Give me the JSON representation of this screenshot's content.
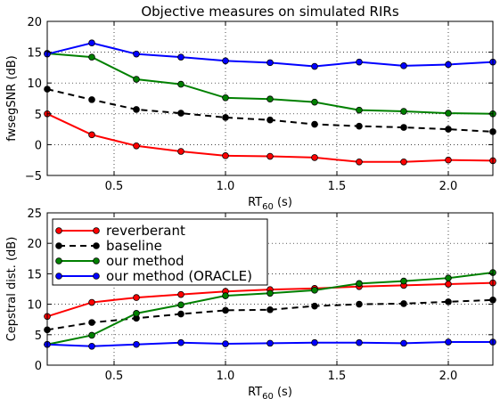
{
  "chart_data": [
    {
      "type": "line",
      "title": "Objective measures on simulated RIRs",
      "xlabel_main": "RT",
      "xlabel_sub": "60",
      "xlabel_unit": " (s)",
      "ylabel": "fwsegSNR (dB)",
      "xlim": [
        0.2,
        2.2
      ],
      "ylim": [
        -5,
        20
      ],
      "xticks": [
        0.5,
        1.0,
        1.5,
        2.0
      ],
      "xtick_labels": [
        "0.5",
        "1.0",
        "1.5",
        "2.0"
      ],
      "yticks": [
        -5,
        0,
        5,
        10,
        15,
        20
      ],
      "ytick_labels": [
        "−5",
        "0",
        "5",
        "10",
        "15",
        "20"
      ],
      "grid": true,
      "x": [
        0.2,
        0.4,
        0.6,
        0.8,
        1.0,
        1.2,
        1.4,
        1.6,
        1.8,
        2.0,
        2.2
      ],
      "series": [
        {
          "name": "reverberant",
          "color": "#ff0000",
          "dashed": false,
          "values": [
            5.0,
            1.6,
            -0.2,
            -1.1,
            -1.8,
            -1.9,
            -2.1,
            -2.8,
            -2.8,
            -2.5,
            -2.6
          ]
        },
        {
          "name": "baseline",
          "color": "#000000",
          "dashed": true,
          "values": [
            9.0,
            7.3,
            5.7,
            5.1,
            4.4,
            4.0,
            3.3,
            3.0,
            2.8,
            2.5,
            2.1
          ]
        },
        {
          "name": "our method",
          "color": "#008000",
          "dashed": false,
          "values": [
            14.8,
            14.2,
            10.6,
            9.8,
            7.6,
            7.4,
            6.9,
            5.6,
            5.4,
            5.1,
            5.0
          ]
        },
        {
          "name": "our method (ORACLE)",
          "color": "#0000ff",
          "dashed": false,
          "values": [
            14.7,
            16.5,
            14.7,
            14.2,
            13.6,
            13.3,
            12.7,
            13.4,
            12.8,
            13.0,
            13.4
          ]
        }
      ]
    },
    {
      "type": "line",
      "title": "",
      "xlabel_main": "RT",
      "xlabel_sub": "60",
      "xlabel_unit": " (s)",
      "ylabel": "Cepstral dist. (dB)",
      "xlim": [
        0.2,
        2.2
      ],
      "ylim": [
        0,
        25
      ],
      "xticks": [
        0.5,
        1.0,
        1.5,
        2.0
      ],
      "xtick_labels": [
        "0.5",
        "1.0",
        "1.5",
        "2.0"
      ],
      "yticks": [
        0,
        5,
        10,
        15,
        20,
        25
      ],
      "ytick_labels": [
        "0",
        "5",
        "10",
        "15",
        "20",
        "25"
      ],
      "grid": true,
      "legend_position": "upper-left",
      "x": [
        0.2,
        0.4,
        0.6,
        0.8,
        1.0,
        1.2,
        1.4,
        1.6,
        1.8,
        2.0,
        2.2
      ],
      "series": [
        {
          "name": "reverberant",
          "color": "#ff0000",
          "dashed": false,
          "values": [
            8.0,
            10.3,
            11.1,
            11.6,
            12.1,
            12.4,
            12.6,
            12.9,
            13.1,
            13.3,
            13.5
          ]
        },
        {
          "name": "baseline",
          "color": "#000000",
          "dashed": true,
          "values": [
            5.8,
            7.0,
            7.7,
            8.4,
            9.0,
            9.1,
            9.7,
            10.0,
            10.1,
            10.4,
            10.7
          ]
        },
        {
          "name": "our method",
          "color": "#008000",
          "dashed": false,
          "values": [
            3.4,
            4.9,
            8.5,
            9.9,
            11.4,
            11.8,
            12.3,
            13.4,
            13.8,
            14.3,
            15.2
          ]
        },
        {
          "name": "our method (ORACLE)",
          "color": "#0000ff",
          "dashed": false,
          "values": [
            3.4,
            3.1,
            3.4,
            3.7,
            3.5,
            3.6,
            3.7,
            3.7,
            3.6,
            3.8,
            3.8
          ]
        }
      ]
    }
  ]
}
